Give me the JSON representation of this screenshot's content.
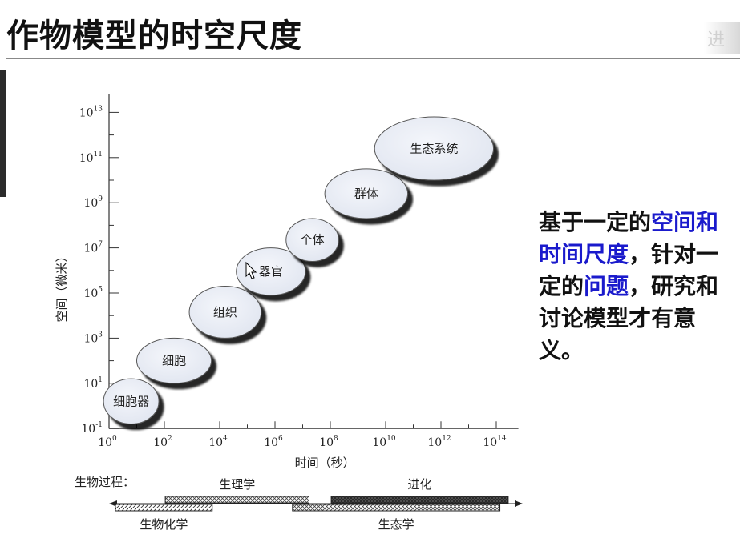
{
  "title": "作物模型的时空尺度",
  "corner_text": "进",
  "side_note": {
    "segments": [
      {
        "text": "基于一定的",
        "highlight": false
      },
      {
        "text": "空间和时间尺度",
        "highlight": true
      },
      {
        "text": "，针对一定的",
        "highlight": false
      },
      {
        "text": "问题",
        "highlight": true
      },
      {
        "text": "，研究和讨论模型才有意义。",
        "highlight": false
      }
    ],
    "highlight_color": "#1a1acc"
  },
  "chart_data": {
    "type": "scatter",
    "xlabel": "时间（秒）",
    "ylabel": "空间（微米）",
    "x_scale": "log",
    "y_scale": "log",
    "x_ticks": [
      {
        "base": "10",
        "exp": "0"
      },
      {
        "base": "10",
        "exp": "2"
      },
      {
        "base": "10",
        "exp": "4"
      },
      {
        "base": "10",
        "exp": "6"
      },
      {
        "base": "10",
        "exp": "8"
      },
      {
        "base": "10",
        "exp": "10"
      },
      {
        "base": "10",
        "exp": "12"
      },
      {
        "base": "10",
        "exp": "14"
      }
    ],
    "y_ticks": [
      {
        "base": "10",
        "exp": "-1"
      },
      {
        "base": "10",
        "exp": "1"
      },
      {
        "base": "10",
        "exp": "3"
      },
      {
        "base": "10",
        "exp": "5"
      },
      {
        "base": "10",
        "exp": "7"
      },
      {
        "base": "10",
        "exp": "9"
      },
      {
        "base": "10",
        "exp": "11"
      },
      {
        "base": "10",
        "exp": "13"
      }
    ],
    "xlim_exp": [
      0,
      14.8
    ],
    "ylim_exp": [
      -1,
      13.8
    ],
    "levels": [
      {
        "label": "细胞器",
        "x_range_exp": [
          -0.2,
          1.8
        ],
        "y_range_exp": [
          -0.8,
          1.2
        ]
      },
      {
        "label": "细胞",
        "x_range_exp": [
          1.0,
          3.7
        ],
        "y_range_exp": [
          1.0,
          3.0
        ]
      },
      {
        "label": "组织",
        "x_range_exp": [
          2.9,
          5.5
        ],
        "y_range_exp": [
          3.0,
          5.3
        ]
      },
      {
        "label": "器官",
        "x_range_exp": [
          4.6,
          7.1
        ],
        "y_range_exp": [
          4.9,
          7.0
        ]
      },
      {
        "label": "个体",
        "x_range_exp": [
          6.4,
          8.3
        ],
        "y_range_exp": [
          6.4,
          8.3
        ]
      },
      {
        "label": "群体",
        "x_range_exp": [
          7.8,
          10.8
        ],
        "y_range_exp": [
          8.3,
          10.5
        ]
      },
      {
        "label": "生态系统",
        "x_range_exp": [
          9.6,
          13.9
        ],
        "y_range_exp": [
          10.0,
          12.8
        ]
      }
    ],
    "processes": {
      "header": "生物过程：",
      "bars": [
        {
          "label": "生理学",
          "x_range_exp": [
            1.8,
            7.0
          ],
          "pattern": "crosshatch",
          "row": "upper"
        },
        {
          "label": "进化",
          "x_range_exp": [
            7.8,
            14.2
          ],
          "pattern": "dark",
          "row": "upper"
        },
        {
          "label": "生物化学",
          "x_range_exp": [
            0.0,
            3.5
          ],
          "pattern": "hatch",
          "row": "lower"
        },
        {
          "label": "生态学",
          "x_range_exp": [
            6.4,
            13.9
          ],
          "pattern": "crosshatch",
          "row": "lower"
        }
      ]
    }
  }
}
